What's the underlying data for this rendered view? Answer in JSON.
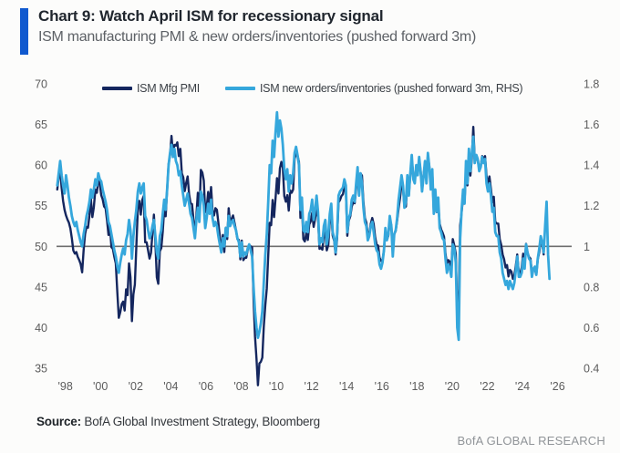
{
  "header": {
    "title": "Chart 9: Watch April ISM for recessionary signal",
    "subtitle": "ISM manufacturing PMI & new orders/inventories (pushed forward 3m)"
  },
  "legend": [
    {
      "label": "ISM Mfg PMI",
      "color": "#14265e"
    },
    {
      "label": "ISM new orders/inventories (pushed forward 3m, RHS)",
      "color": "#35a7dc"
    }
  ],
  "footer": {
    "source_label": "Source:",
    "source_text": " BofA Global Investment Strategy, Bloomberg",
    "brand": "BofA GLOBAL RESEARCH"
  },
  "colors": {
    "accent_bar": "#1059cf",
    "pmi_line": "#14265e",
    "ratio_line": "#35a7dc",
    "reference_line": "#6e6e6e",
    "axis_text": "#5c5c5c"
  },
  "chart_data": {
    "type": "line",
    "title": "Chart 9: Watch April ISM for recessionary signal",
    "subtitle": "ISM manufacturing PMI & new orders/inventories (pushed forward 3m)",
    "left_axis": {
      "ticks": [
        "70",
        "65",
        "60",
        "55",
        "50",
        "45",
        "40",
        "35"
      ],
      "tick_values": [
        70,
        65,
        60,
        55,
        50,
        45,
        40,
        35
      ],
      "range": [
        35,
        70
      ]
    },
    "right_axis": {
      "ticks": [
        "1.8",
        "1.6",
        "1.4",
        "1.2",
        "1",
        "0.8",
        "0.6",
        "0.4"
      ],
      "tick_values": [
        1.8,
        1.6,
        1.4,
        1.2,
        1.0,
        0.8,
        0.6,
        0.4
      ],
      "range": [
        0.4,
        1.8
      ]
    },
    "x_axis": {
      "tick_labels": [
        "'98",
        "'00",
        "'02",
        "'04",
        "'06",
        "'08",
        "'10",
        "'12",
        "'14",
        "'16",
        "'18",
        "'20",
        "'22",
        "'24",
        "'26"
      ],
      "tick_years": [
        1998,
        2000,
        2002,
        2004,
        2006,
        2008,
        2010,
        2012,
        2014,
        2016,
        2018,
        2020,
        2022,
        2024,
        2026
      ],
      "range": [
        1997.5,
        2026.8
      ]
    },
    "reference_line": {
      "left_value": 50,
      "right_value": 1
    },
    "legend_position": "top",
    "grid": false,
    "series": [
      {
        "name": "ISM Mfg PMI",
        "axis": "left",
        "color": "#14265e",
        "width": 2.4,
        "start_year": 1997.54,
        "interval_years": 0.083333,
        "values": [
          57.0,
          58.5,
          59.5,
          57.2,
          55.6,
          54.5,
          53.8,
          53.3,
          52.9,
          52.2,
          51.0,
          49.5,
          49.1,
          49.3,
          48.7,
          48.3,
          47.8,
          46.8,
          49.5,
          51.5,
          52.4,
          52.3,
          53.8,
          55.8,
          53.6,
          54.8,
          57.0,
          56.6,
          58.1,
          57.8,
          56.3,
          55.8,
          54.9,
          54.7,
          53.2,
          51.4,
          52.5,
          49.9,
          49.7,
          48.7,
          47.9,
          44.3,
          41.2,
          41.9,
          42.9,
          43.2,
          42.1,
          44.7,
          44.0,
          47.9,
          46.2,
          40.8,
          44.1,
          45.3,
          49.9,
          54.7,
          55.6,
          53.9,
          55.7,
          56.2,
          50.5,
          50.5,
          49.5,
          48.5,
          49.2,
          51.6,
          53.9,
          50.5,
          46.2,
          45.4,
          49.4,
          49.8,
          51.8,
          54.7,
          53.7,
          57.0,
          60.1,
          61.2,
          63.6,
          61.4,
          62.5,
          62.4,
          62.8,
          61.1,
          62.0,
          59.0,
          58.5,
          56.8,
          57.8,
          58.6,
          56.4,
          55.3,
          55.2,
          53.3,
          51.4,
          53.8,
          56.6,
          53.6,
          59.4,
          59.1,
          58.1,
          54.2,
          54.8,
          56.7,
          55.2,
          57.3,
          54.4,
          53.8,
          54.7,
          54.5,
          52.9,
          51.2,
          49.5,
          51.4,
          49.3,
          52.3,
          50.9,
          54.7,
          52.8,
          53.4,
          53.8,
          52.9,
          52.0,
          50.9,
          50.8,
          48.4,
          50.7,
          48.3,
          48.6,
          48.6,
          49.6,
          50.2,
          50.0,
          49.9,
          43.5,
          38.9,
          36.2,
          32.9,
          35.6,
          35.8,
          36.3,
          40.1,
          42.8,
          44.8,
          48.9,
          52.9,
          52.6,
          55.7,
          53.6,
          55.9,
          58.4,
          56.5,
          59.6,
          60.4,
          59.7,
          56.2,
          55.5,
          56.3,
          54.4,
          56.9,
          56.6,
          57.0,
          60.8,
          61.4,
          61.2,
          60.4,
          53.5,
          55.3,
          50.9,
          50.6,
          51.6,
          50.8,
          52.7,
          53.1,
          54.1,
          52.4,
          53.4,
          54.8,
          53.5,
          49.7,
          49.8,
          49.6,
          51.5,
          51.7,
          49.5,
          50.2,
          53.1,
          54.2,
          51.3,
          50.7,
          49.0,
          50.9,
          55.4,
          55.7,
          56.2,
          56.4,
          57.3,
          57.0,
          51.3,
          53.2,
          53.7,
          54.9,
          55.4,
          55.3,
          57.1,
          59.0,
          56.6,
          59.0,
          58.7,
          55.5,
          53.5,
          52.9,
          51.5,
          51.5,
          52.8,
          53.5,
          52.7,
          51.1,
          50.2,
          50.1,
          48.6,
          48.2,
          48.2,
          49.5,
          51.8,
          50.8,
          51.3,
          53.2,
          52.6,
          49.4,
          51.5,
          51.9,
          53.2,
          54.7,
          56.0,
          57.7,
          57.2,
          54.8,
          54.9,
          57.8,
          56.3,
          58.8,
          60.8,
          58.7,
          58.2,
          59.7,
          59.1,
          60.8,
          59.3,
          57.3,
          58.7,
          60.2,
          58.1,
          61.3,
          59.8,
          57.7,
          59.3,
          54.1,
          56.6,
          54.2,
          55.3,
          52.8,
          52.1,
          51.7,
          51.2,
          49.1,
          47.8,
          48.3,
          48.1,
          47.2,
          50.9,
          50.1,
          49.1,
          41.5,
          43.1,
          52.6,
          54.2,
          56.0,
          55.4,
          59.3,
          57.5,
          60.7,
          58.7,
          60.8,
          64.7,
          60.7,
          61.2,
          60.6,
          59.5,
          59.9,
          61.1,
          60.8,
          61.1,
          58.7,
          57.6,
          58.6,
          57.1,
          55.4,
          56.1,
          53.0,
          52.8,
          52.8,
          50.9,
          50.2,
          49.0,
          48.4,
          47.4,
          47.7,
          46.3,
          47.1,
          46.9,
          46.0,
          46.4,
          47.6,
          49.0,
          46.7,
          46.7,
          47.4,
          49.1,
          47.8,
          50.3,
          49.2,
          48.7,
          48.5,
          46.8,
          47.2,
          47.2,
          46.5,
          48.4,
          49.3,
          50.9,
          50.3,
          49.0
        ]
      },
      {
        "name": "ISM new orders/inventories (pushed forward 3m, RHS)",
        "axis": "right",
        "color": "#35a7dc",
        "width": 2.8,
        "start_year": 1997.54,
        "interval_years": 0.083333,
        "values": [
          1.3,
          1.36,
          1.42,
          1.35,
          1.3,
          1.26,
          1.35,
          1.3,
          1.24,
          1.2,
          1.15,
          1.12,
          1.1,
          1.12,
          1.08,
          1.05,
          1.02,
          1.0,
          1.06,
          1.1,
          1.15,
          1.18,
          1.22,
          1.28,
          1.24,
          1.28,
          1.33,
          1.3,
          1.36,
          1.33,
          1.32,
          1.28,
          1.25,
          1.22,
          1.18,
          1.12,
          1.1,
          1.06,
          1.02,
          0.98,
          0.95,
          0.9,
          0.87,
          0.92,
          0.96,
          0.99,
          0.96,
          1.03,
          1.06,
          1.13,
          1.08,
          0.94,
          1.05,
          1.12,
          1.18,
          1.27,
          1.31,
          1.26,
          1.29,
          1.31,
          1.15,
          1.13,
          1.08,
          1.04,
          1.06,
          1.1,
          1.13,
          1.05,
          0.97,
          0.94,
          1.05,
          1.08,
          1.16,
          1.23,
          1.18,
          1.28,
          1.4,
          1.46,
          1.5,
          1.44,
          1.48,
          1.42,
          1.4,
          1.35,
          1.37,
          1.3,
          1.25,
          1.2,
          1.23,
          1.26,
          1.21,
          1.16,
          1.14,
          1.09,
          1.04,
          1.13,
          1.19,
          1.12,
          1.27,
          1.25,
          1.2,
          1.09,
          1.14,
          1.21,
          1.16,
          1.23,
          1.14,
          1.1,
          1.12,
          1.1,
          1.05,
          1.01,
          0.97,
          1.04,
          1.0,
          1.09,
          1.05,
          1.15,
          1.1,
          1.12,
          1.13,
          1.1,
          1.08,
          1.04,
          1.02,
          0.95,
          1.02,
          0.95,
          0.97,
          0.96,
          0.99,
          1.01,
          0.98,
          0.95,
          0.8,
          0.68,
          0.6,
          0.55,
          0.58,
          0.62,
          0.68,
          0.82,
          0.96,
          1.06,
          1.22,
          1.4,
          1.36,
          1.52,
          1.44,
          1.56,
          1.66,
          1.54,
          1.62,
          1.58,
          1.5,
          1.38,
          1.33,
          1.38,
          1.27,
          1.35,
          1.31,
          1.36,
          1.46,
          1.49,
          1.45,
          1.4,
          1.18,
          1.24,
          1.08,
          1.07,
          1.12,
          1.07,
          1.16,
          1.18,
          1.23,
          1.13,
          1.18,
          1.25,
          1.17,
          1.01,
          1.04,
          1.02,
          1.1,
          1.13,
          1.01,
          1.06,
          1.16,
          1.21,
          1.07,
          1.04,
          0.97,
          1.06,
          1.25,
          1.27,
          1.28,
          1.29,
          1.33,
          1.3,
          1.07,
          1.14,
          1.16,
          1.23,
          1.25,
          1.22,
          1.31,
          1.39,
          1.25,
          1.36,
          1.31,
          1.19,
          1.12,
          1.1,
          1.03,
          1.05,
          1.1,
          1.12,
          1.07,
          1.01,
          0.98,
          0.97,
          0.91,
          0.89,
          0.92,
          0.98,
          1.09,
          1.03,
          1.06,
          1.15,
          1.1,
          0.95,
          1.06,
          1.08,
          1.14,
          1.23,
          1.29,
          1.35,
          1.3,
          1.19,
          1.22,
          1.35,
          1.25,
          1.36,
          1.45,
          1.33,
          1.31,
          1.4,
          1.35,
          1.44,
          1.37,
          1.27,
          1.34,
          1.42,
          1.31,
          1.46,
          1.39,
          1.28,
          1.38,
          1.16,
          1.28,
          1.17,
          1.24,
          1.09,
          1.07,
          1.04,
          1.03,
          0.94,
          0.87,
          0.91,
          0.89,
          0.85,
          1.01,
          0.99,
          0.92,
          0.6,
          0.54,
          1.04,
          1.18,
          1.28,
          1.21,
          1.42,
          1.31,
          1.48,
          1.37,
          1.46,
          1.54,
          1.41,
          1.45,
          1.43,
          1.37,
          1.39,
          1.44,
          1.41,
          1.43,
          1.31,
          1.27,
          1.31,
          1.25,
          1.17,
          1.19,
          1.07,
          1.05,
          1.05,
          0.97,
          0.94,
          0.87,
          0.84,
          0.81,
          0.83,
          0.79,
          0.83,
          0.81,
          0.79,
          0.82,
          0.88,
          0.95,
          0.85,
          0.85,
          0.87,
          0.94,
          0.89,
          1.01,
          0.97,
          0.94,
          0.93,
          0.85,
          0.89,
          0.9,
          0.86,
          0.94,
          0.99,
          1.05,
          1.02,
          0.97,
          1.1,
          1.22,
          0.96,
          0.84
        ]
      }
    ]
  }
}
